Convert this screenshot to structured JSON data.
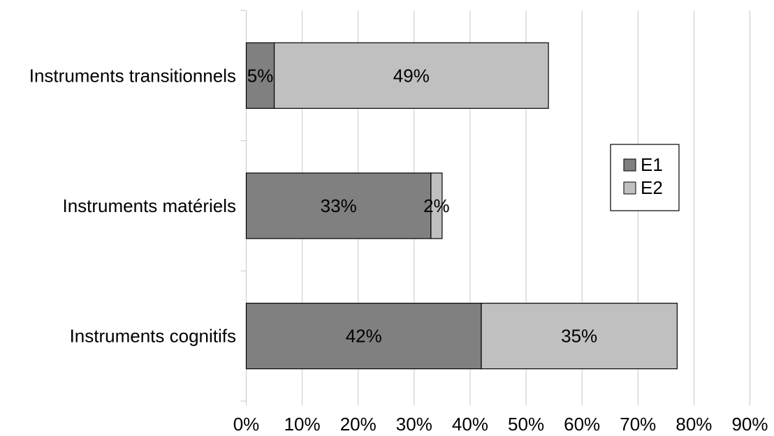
{
  "chart_data": {
    "type": "bar",
    "orientation": "horizontal",
    "stacked": true,
    "categories": [
      "Instruments transitionnels",
      "Instruments matériels",
      "Instruments cognitifs"
    ],
    "series": [
      {
        "name": "E1",
        "values": [
          5,
          33,
          42
        ],
        "labels": [
          "5%",
          "33%",
          "42%"
        ],
        "color": "#808080"
      },
      {
        "name": "E2",
        "values": [
          49,
          2,
          35
        ],
        "labels": [
          "49%",
          "2%",
          "35%"
        ],
        "color": "#c0c0c0"
      }
    ],
    "xlim": [
      0,
      90
    ],
    "xticks": [
      0,
      10,
      20,
      30,
      40,
      50,
      60,
      70,
      80,
      90
    ],
    "xtick_labels": [
      "0%",
      "10%",
      "20%",
      "30%",
      "40%",
      "50%",
      "60%",
      "70%",
      "80%",
      "90%"
    ],
    "grid": "vertical",
    "legend_position": "right"
  }
}
